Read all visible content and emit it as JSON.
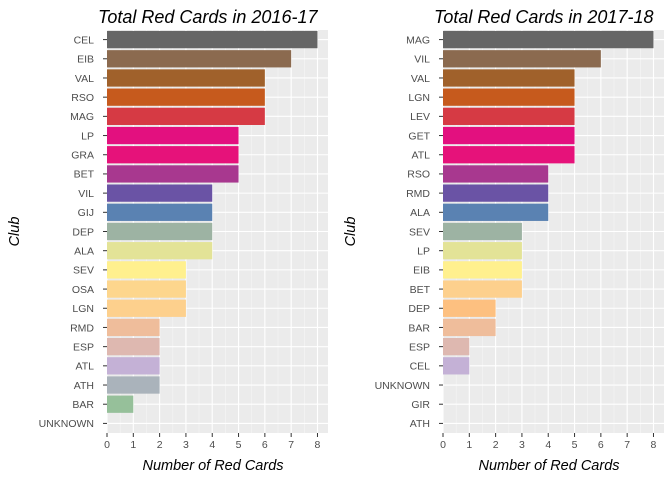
{
  "chart_data": [
    {
      "type": "bar",
      "orientation": "horizontal",
      "title": "Total Red Cards in 2016-17",
      "xlabel": "Number of Red Cards",
      "ylabel": "Club",
      "xlim": [
        0,
        8.4
      ],
      "xticks": [
        "0",
        "1",
        "2",
        "3",
        "4",
        "5",
        "6",
        "7",
        "8"
      ],
      "grid": true,
      "categories": [
        "CEL",
        "EIB",
        "VAL",
        "RSO",
        "MAG",
        "LP",
        "GRA",
        "BET",
        "VIL",
        "GIJ",
        "DEP",
        "ALA",
        "SEV",
        "OSA",
        "LGN",
        "RMD",
        "ESP",
        "ATL",
        "ATH",
        "BAR",
        "UNKNOWN"
      ],
      "values": [
        8,
        7,
        6,
        6,
        6,
        5,
        5,
        5,
        4,
        4,
        4,
        4,
        3,
        3,
        3,
        2,
        2,
        2,
        2,
        1,
        0
      ],
      "colors": [
        "#666666",
        "#8b6a4f",
        "#a0612b",
        "#c65a1d",
        "#d63a44",
        "#e3107f",
        "#e6127a",
        "#a8388f",
        "#6a53a5",
        "#5a82b2",
        "#9db3a3",
        "#e3e397",
        "#fff08e",
        "#fdd68d",
        "#fdd08d",
        "#efbd9b",
        "#deb8b0",
        "#c4b1d6",
        "#aab3bb",
        "#96c09a",
        "#cccccc"
      ]
    },
    {
      "type": "bar",
      "orientation": "horizontal",
      "title": "Total Red Cards in 2017-18",
      "xlabel": "Number of Red Cards",
      "ylabel": "Club",
      "xlim": [
        0,
        8.4
      ],
      "xticks": [
        "0",
        "1",
        "2",
        "3",
        "4",
        "5",
        "6",
        "7",
        "8"
      ],
      "grid": true,
      "categories": [
        "MAG",
        "VIL",
        "VAL",
        "LGN",
        "LEV",
        "GET",
        "ATL",
        "RSO",
        "RMD",
        "ALA",
        "SEV",
        "LP",
        "EIB",
        "BET",
        "DEP",
        "BAR",
        "ESP",
        "CEL",
        "UNKNOWN",
        "GIR",
        "ATH"
      ],
      "values": [
        8,
        6,
        5,
        5,
        5,
        5,
        5,
        4,
        4,
        4,
        3,
        3,
        3,
        3,
        2,
        2,
        1,
        1,
        0,
        0,
        0
      ],
      "colors": [
        "#666666",
        "#8b6a4f",
        "#a0612b",
        "#c65a1d",
        "#d63a44",
        "#e3107f",
        "#e6127a",
        "#a8388f",
        "#6a53a5",
        "#5a82b2",
        "#9db3a3",
        "#e3e397",
        "#fff08e",
        "#fdd08d",
        "#fdc080",
        "#efbd9b",
        "#deb8b0",
        "#c4b1d6",
        "#cccccc",
        "#cccccc",
        "#cccccc"
      ]
    }
  ]
}
